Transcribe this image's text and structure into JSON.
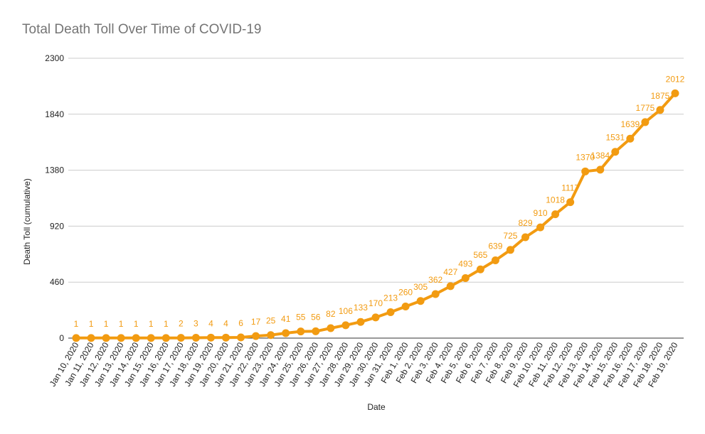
{
  "chart_data": {
    "type": "line",
    "title": "Total Death Toll Over Time of COVID-19",
    "xlabel": "Date",
    "ylabel": "Death Toll (cumulative)",
    "ylim": [
      0,
      2300
    ],
    "yticks": [
      0,
      460,
      920,
      1380,
      1840,
      2300
    ],
    "grid": true,
    "color": "#f29b11",
    "categories": [
      "Jan 10, 2020",
      "Jan 11, 2020",
      "Jan 12, 2020",
      "Jan 13, 2020",
      "Jan 14, 2020",
      "Jan 15, 2020",
      "Jan 16, 2020",
      "Jan 17, 2020",
      "Jan 18, 2020",
      "Jan 19, 2020",
      "Jan 20, 2020",
      "Jan 21, 2020",
      "Jan 22, 2020",
      "Jan 23, 2020",
      "Jan 24, 2020",
      "Jan 25, 2020",
      "Jan 26, 2020",
      "Jan 27, 2020",
      "Jan 28, 2020",
      "Jan 29, 2020",
      "Jan 30, 2020",
      "Jan 31, 2020",
      "Feb 1, 2020",
      "Feb 2, 2020",
      "Feb 3, 2020",
      "Feb 4, 2020",
      "Feb 5, 2020",
      "Feb 6, 2020",
      "Feb 7, 2020",
      "Feb 8, 2020",
      "Feb 9, 2020",
      "Feb 10, 2020",
      "Feb 11, 2020",
      "Feb 12, 2020",
      "Feb 13, 2020",
      "Feb 14, 2020",
      "Feb 15, 2020",
      "Feb 16, 2020",
      "Feb 17, 2020",
      "Feb 18, 2020",
      "Feb 19, 2020"
    ],
    "values": [
      1,
      1,
      1,
      1,
      1,
      1,
      1,
      2,
      3,
      4,
      4,
      6,
      17,
      25,
      41,
      55,
      56,
      82,
      106,
      133,
      170,
      213,
      260,
      305,
      362,
      427,
      493,
      565,
      639,
      725,
      829,
      910,
      1018,
      1117,
      1370,
      1384,
      1531,
      1639,
      1775,
      1875,
      2012
    ]
  }
}
